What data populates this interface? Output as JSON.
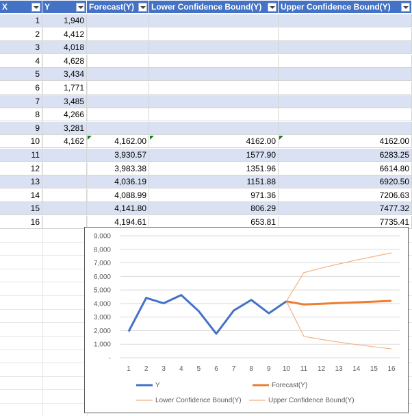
{
  "headers": [
    "X",
    "Y",
    "Forecast(Y)",
    "Lower Confidence Bound(Y)",
    "Upper Confidence Bound(Y)"
  ],
  "rows": [
    {
      "x": "1",
      "y": "1,940",
      "f": "",
      "l": "",
      "u": ""
    },
    {
      "x": "2",
      "y": "4,412",
      "f": "",
      "l": "",
      "u": ""
    },
    {
      "x": "3",
      "y": "4,018",
      "f": "",
      "l": "",
      "u": ""
    },
    {
      "x": "4",
      "y": "4,628",
      "f": "",
      "l": "",
      "u": ""
    },
    {
      "x": "5",
      "y": "3,434",
      "f": "",
      "l": "",
      "u": ""
    },
    {
      "x": "6",
      "y": "1,771",
      "f": "",
      "l": "",
      "u": ""
    },
    {
      "x": "7",
      "y": "3,485",
      "f": "",
      "l": "",
      "u": ""
    },
    {
      "x": "8",
      "y": "4,266",
      "f": "",
      "l": "",
      "u": ""
    },
    {
      "x": "9",
      "y": "3,281",
      "f": "",
      "l": "",
      "u": ""
    },
    {
      "x": "10",
      "y": "4,162",
      "f": "4,162.00",
      "l": "4162.00",
      "u": "4162.00"
    },
    {
      "x": "11",
      "y": "",
      "f": "3,930.57",
      "l": "1577.90",
      "u": "6283.25"
    },
    {
      "x": "12",
      "y": "",
      "f": "3,983.38",
      "l": "1351.96",
      "u": "6614.80"
    },
    {
      "x": "13",
      "y": "",
      "f": "4,036.19",
      "l": "1151.88",
      "u": "6920.50"
    },
    {
      "x": "14",
      "y": "",
      "f": "4,088.99",
      "l": "971.36",
      "u": "7206.63"
    },
    {
      "x": "15",
      "y": "",
      "f": "4,141.80",
      "l": "806.29",
      "u": "7477.32"
    },
    {
      "x": "16",
      "y": "",
      "f": "4,194.61",
      "l": "653.81",
      "u": "7735.41"
    }
  ],
  "colors": {
    "header": "#4472c4",
    "band": "#d9e1f2",
    "y_series": "#4472c4",
    "forecast_series": "#ed7d31",
    "bound_series": "#f4b183"
  },
  "chart_data": {
    "type": "line",
    "x": [
      1,
      2,
      3,
      4,
      5,
      6,
      7,
      8,
      9,
      10,
      11,
      12,
      13,
      14,
      15,
      16
    ],
    "ylim": [
      0,
      9000
    ],
    "yticks": [
      "-",
      "1,000",
      "2,000",
      "3,000",
      "4,000",
      "5,000",
      "6,000",
      "7,000",
      "8,000",
      "9,000"
    ],
    "xticks": [
      "1",
      "2",
      "3",
      "4",
      "5",
      "6",
      "7",
      "8",
      "9",
      "10",
      "11",
      "12",
      "13",
      "14",
      "15",
      "16"
    ],
    "grid": true,
    "legend_position": "bottom",
    "series": [
      {
        "name": "Y",
        "x": [
          1,
          2,
          3,
          4,
          5,
          6,
          7,
          8,
          9,
          10
        ],
        "values": [
          1940,
          4412,
          4018,
          4628,
          3434,
          1771,
          3485,
          4266,
          3281,
          4162
        ]
      },
      {
        "name": "Forecast(Y)",
        "x": [
          10,
          11,
          12,
          13,
          14,
          15,
          16
        ],
        "values": [
          4162,
          3930.57,
          3983.38,
          4036.19,
          4088.99,
          4141.8,
          4194.61
        ]
      },
      {
        "name": "Lower Confidence Bound(Y)",
        "x": [
          10,
          11,
          12,
          13,
          14,
          15,
          16
        ],
        "values": [
          4162,
          1577.9,
          1351.96,
          1151.88,
          971.36,
          806.29,
          653.81
        ]
      },
      {
        "name": "Upper Confidence Bound(Y)",
        "x": [
          10,
          11,
          12,
          13,
          14,
          15,
          16
        ],
        "values": [
          4162,
          6283.25,
          6614.8,
          6920.5,
          7206.63,
          7477.32,
          7735.41
        ]
      }
    ]
  }
}
